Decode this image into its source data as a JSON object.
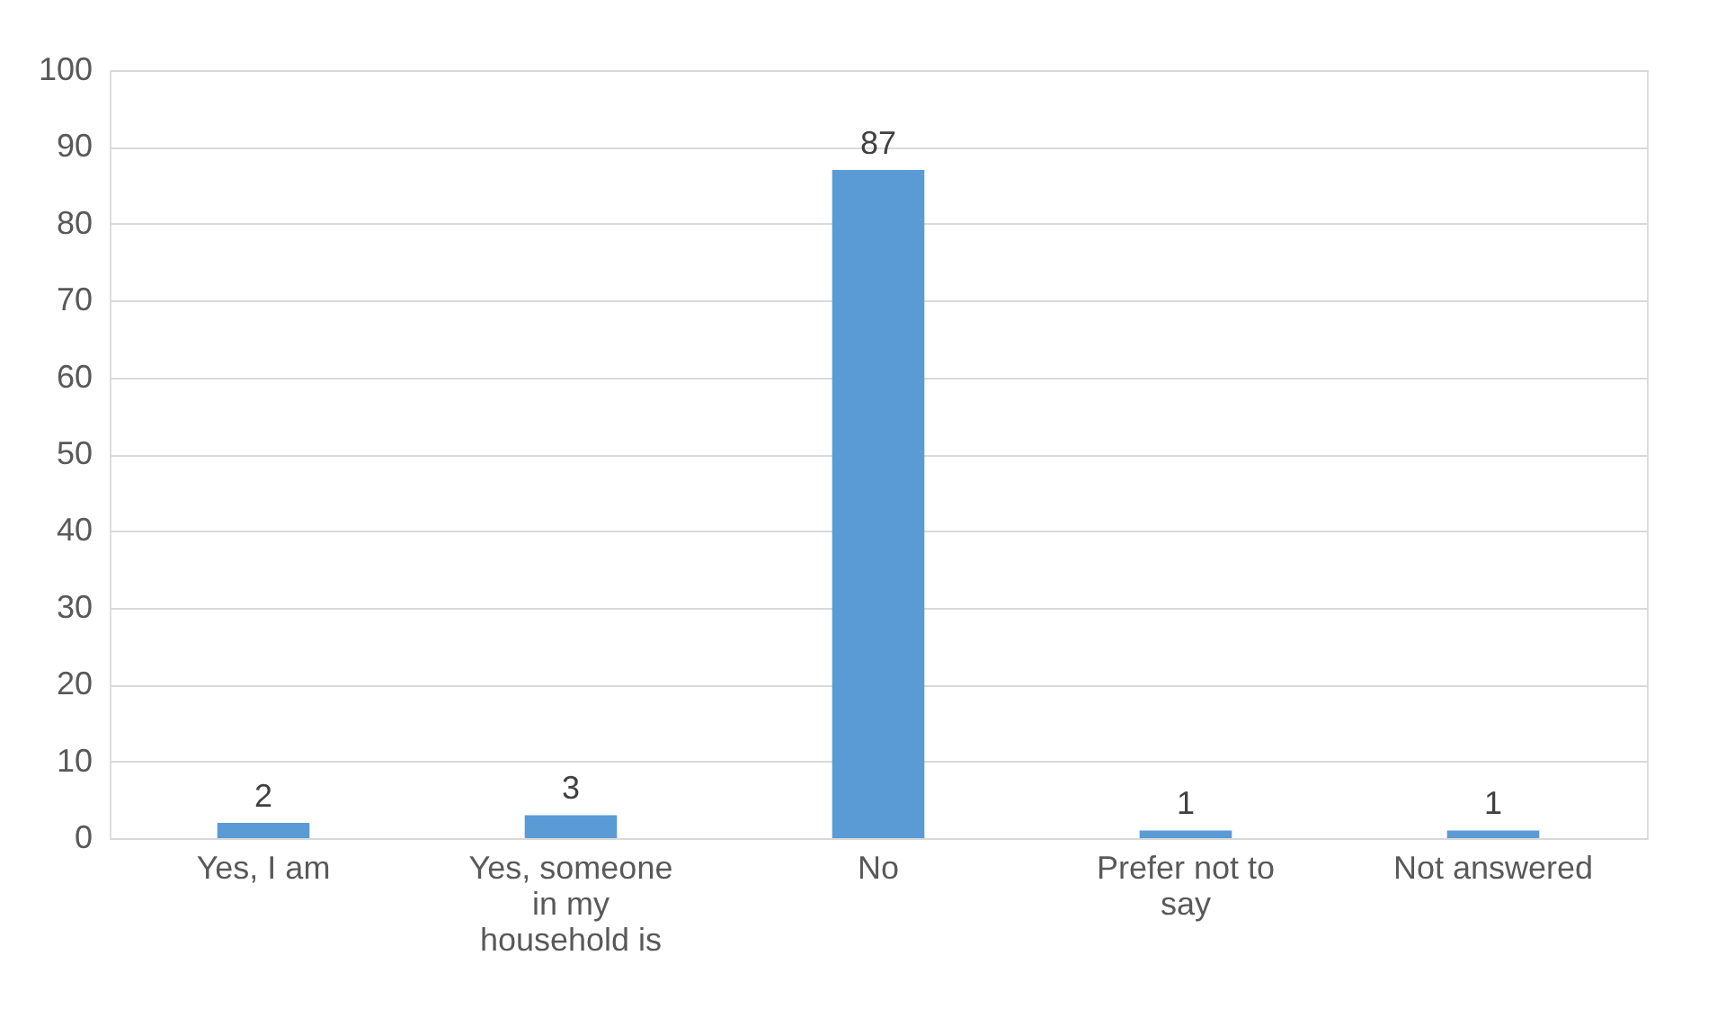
{
  "chart_data": {
    "type": "bar",
    "categories": [
      "Yes, I am",
      "Yes, someone in my household is",
      "No",
      "Prefer not to say",
      "Not answered"
    ],
    "values": [
      2,
      3,
      87,
      1,
      1
    ],
    "color": "#5b9bd5",
    "ylim": [
      0,
      100
    ],
    "yticks": [
      0,
      10,
      20,
      30,
      40,
      50,
      60,
      70,
      80,
      90,
      100
    ],
    "grid": "y",
    "data_labels": true
  }
}
